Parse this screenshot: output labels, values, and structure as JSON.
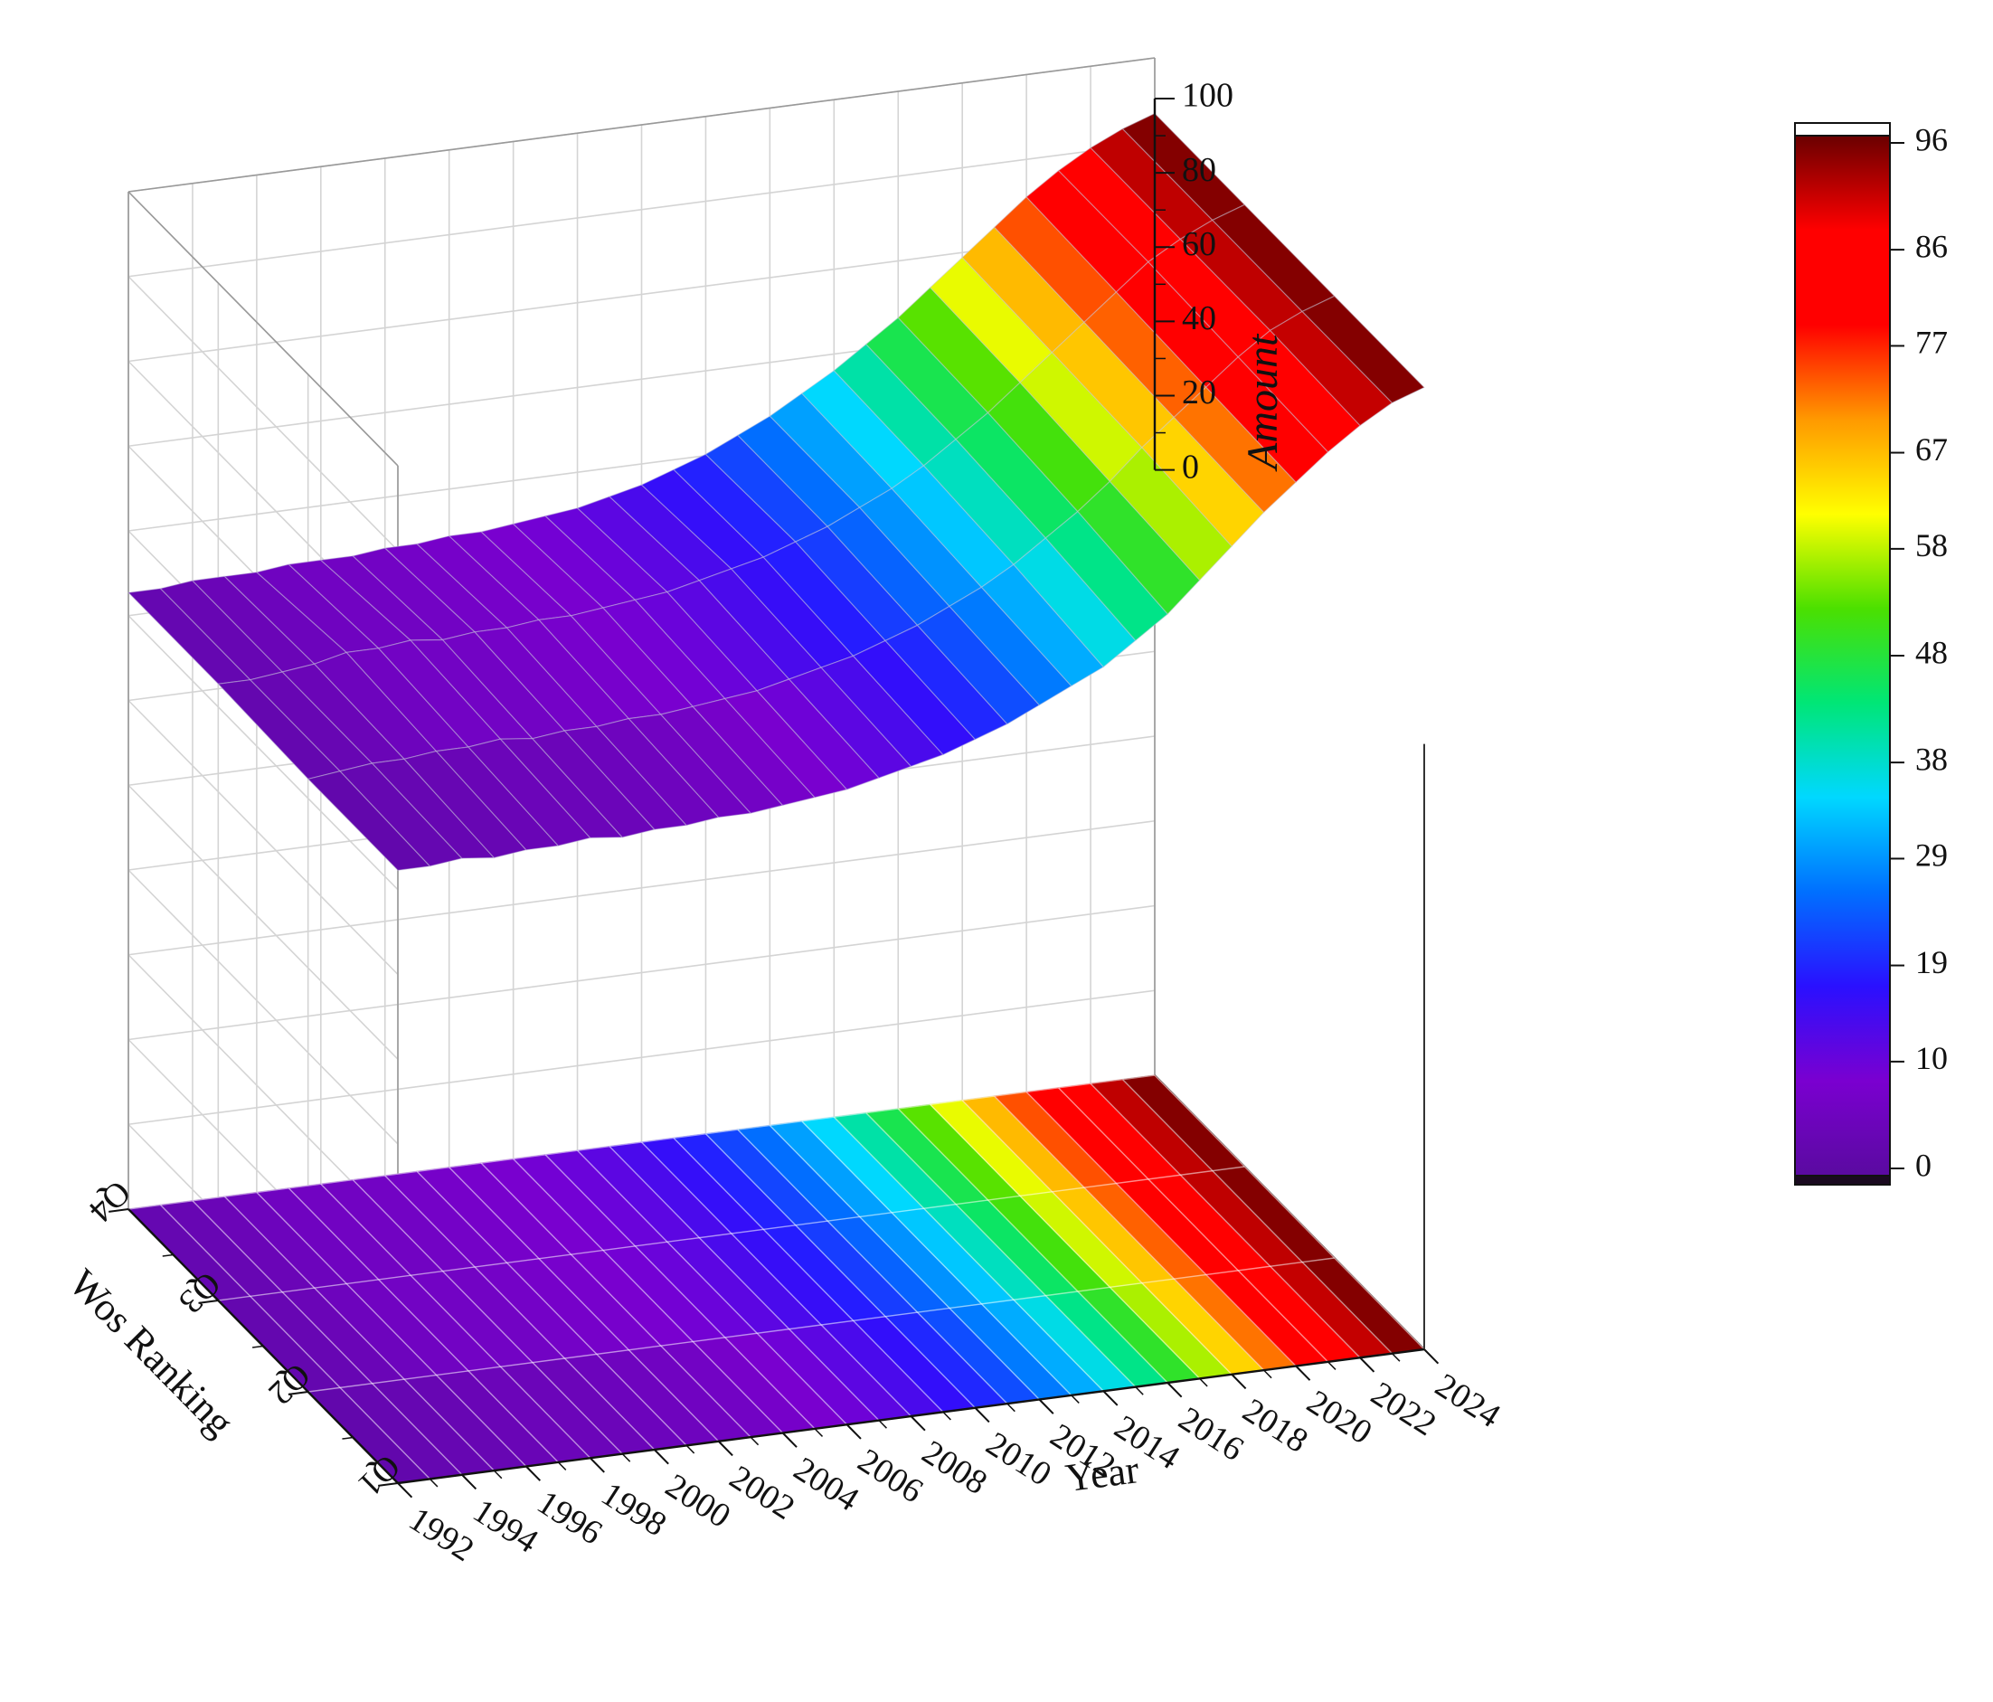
{
  "chart_data": {
    "type": "surface3d",
    "title": "",
    "xlabel": "Year",
    "ylabel": "Wos Ranking",
    "zlabel": "Amount",
    "x_ticks": [
      "1992",
      "1994",
      "1996",
      "1998",
      "2000",
      "2002",
      "2004",
      "2006",
      "2008",
      "2010",
      "2012",
      "2014",
      "2016",
      "2018",
      "2020",
      "2022",
      "2024"
    ],
    "y_ticks": [
      "Q1",
      "Q2",
      "Q3",
      "Q4"
    ],
    "z_ticks": [
      "0",
      "20",
      "40",
      "60",
      "80",
      "100"
    ],
    "zlim": [
      0,
      100
    ],
    "colorbar": {
      "ticks": [
        "0",
        "10",
        "19",
        "29",
        "38",
        "48",
        "58",
        "67",
        "77",
        "86",
        "96"
      ],
      "range": [
        0,
        96
      ],
      "colors": [
        "#5a0aa0",
        "#7a00d0",
        "#2a10ff",
        "#0070ff",
        "#00d8ff",
        "#00e676",
        "#4be000",
        "#ffff00",
        "#ff9900",
        "#ff0000",
        "#ff0000",
        "#6a0000"
      ]
    },
    "grid": true,
    "projection_floor": true,
    "x": [
      1992,
      1993,
      1994,
      1995,
      1996,
      1997,
      1998,
      1999,
      2000,
      2001,
      2002,
      2003,
      2004,
      2005,
      2006,
      2007,
      2008,
      2009,
      2010,
      2011,
      2012,
      2013,
      2014,
      2015,
      2016,
      2017,
      2018,
      2019,
      2020,
      2021,
      2022,
      2023,
      2024
    ],
    "series": [
      {
        "name": "Q1",
        "values": [
          2,
          2,
          3,
          2,
          3,
          3,
          4,
          3,
          4,
          4,
          5,
          5,
          6,
          7,
          8,
          10,
          12,
          14,
          17,
          20,
          24,
          28,
          32,
          38,
          44,
          52,
          60,
          68,
          75,
          82,
          88,
          93,
          96
        ]
      },
      {
        "name": "Q2",
        "values": [
          2,
          3,
          4,
          4,
          5,
          5,
          6,
          5,
          6,
          6,
          7,
          7,
          8,
          9,
          10,
          12,
          14,
          16,
          19,
          22,
          26,
          30,
          35,
          41,
          47,
          54,
          62,
          69,
          76,
          83,
          89,
          93,
          96
        ]
      },
      {
        "name": "Q3",
        "values": [
          3,
          3,
          4,
          5,
          7,
          7,
          8,
          7,
          8,
          8,
          9,
          9,
          10,
          11,
          12,
          14,
          16,
          18,
          21,
          24,
          28,
          32,
          37,
          43,
          49,
          56,
          63,
          70,
          77,
          84,
          89,
          93,
          96
        ]
      },
      {
        "name": "Q4",
        "values": [
          3,
          3,
          4,
          4,
          4,
          5,
          5,
          5,
          6,
          6,
          7,
          7,
          8,
          9,
          10,
          12,
          14,
          17,
          20,
          24,
          28,
          33,
          38,
          44,
          50,
          57,
          64,
          71,
          78,
          84,
          89,
          93,
          96
        ]
      }
    ]
  }
}
